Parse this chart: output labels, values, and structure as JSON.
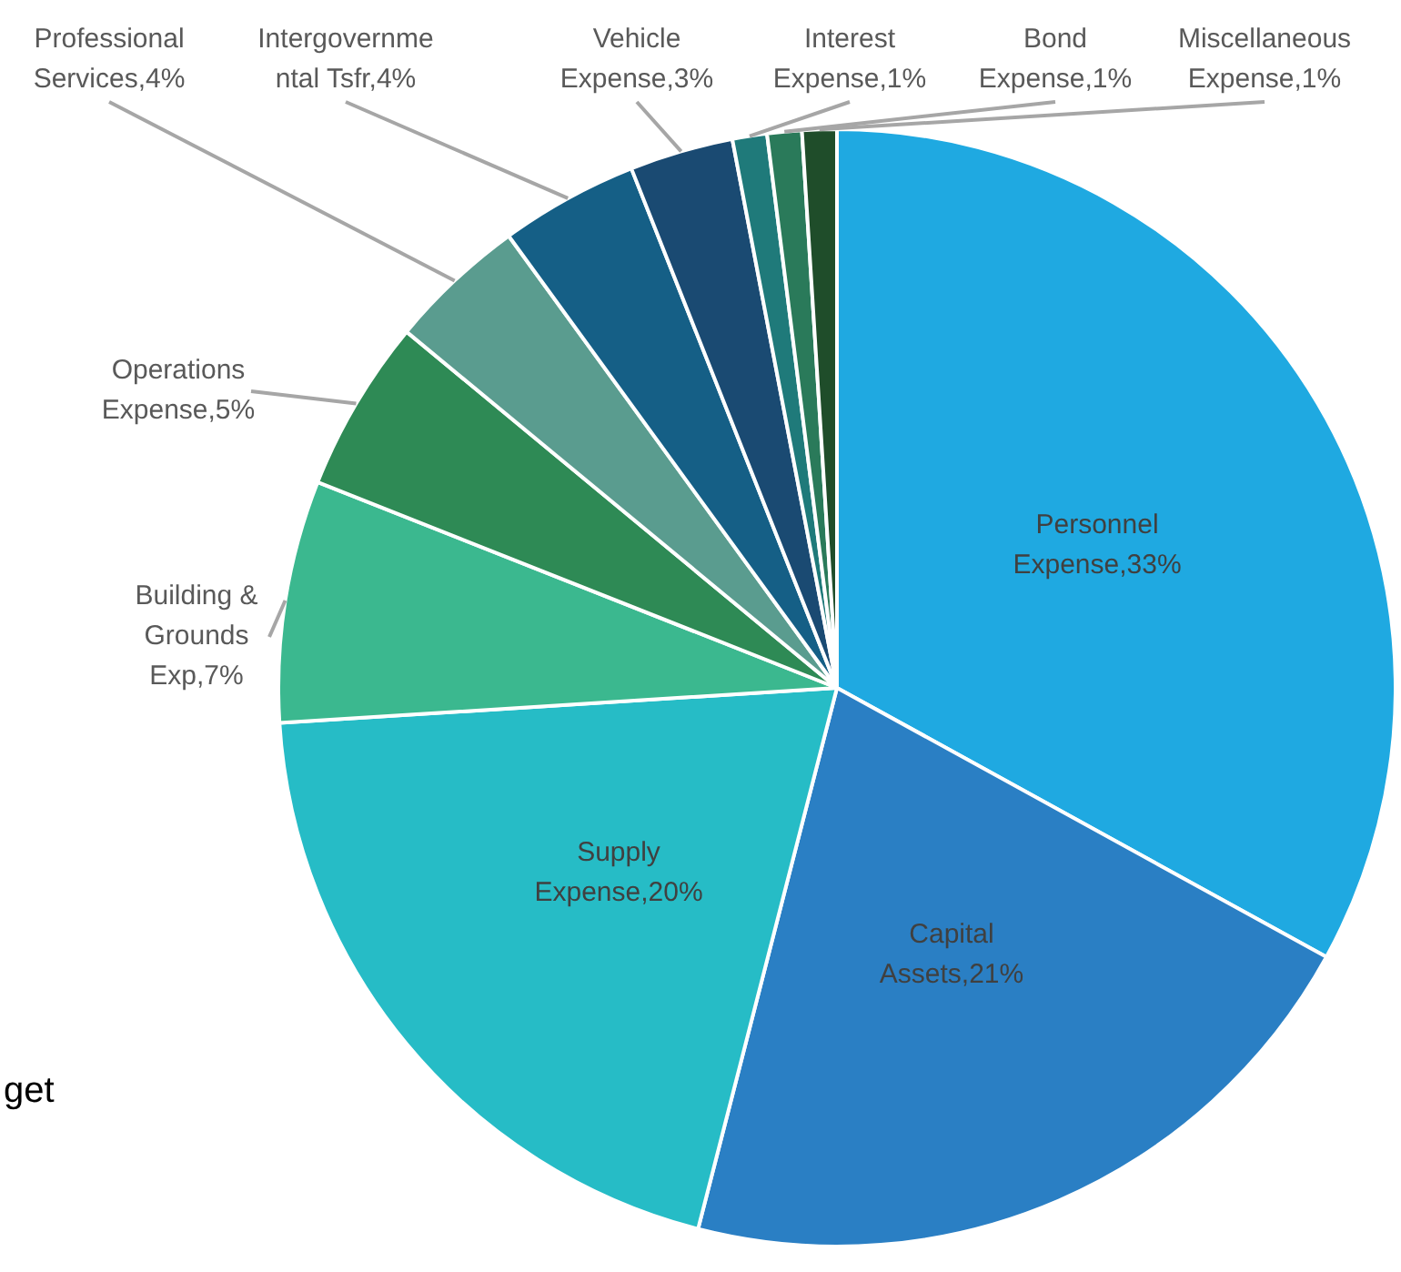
{
  "chart_data": {
    "type": "pie",
    "categories": [
      "Personnel Expense",
      "Capital Assets",
      "Supply Expense",
      "Building & Grounds Exp",
      "Operations Expense",
      "Professional Services",
      "Intergovernmental Tsfr",
      "Vehicle Expense",
      "Interest Expense",
      "Bond Expense",
      "Miscellaneous Expense"
    ],
    "values": [
      33,
      21,
      20,
      7,
      5,
      4,
      4,
      3,
      1,
      1,
      1
    ],
    "value_labels": [
      "33%",
      "21%",
      "20%",
      "7%",
      "5%",
      "4%",
      "4%",
      "3%",
      "1%",
      "1%",
      "1%"
    ],
    "colors": [
      "#1fa9e1",
      "#2a7fc4",
      "#26bcc6",
      "#3bb88f",
      "#2e8a55",
      "#5a9c8f",
      "#155f86",
      "#1a4a72",
      "#1f7a7a",
      "#2a7a5a",
      "#1f4d2a"
    ],
    "legend": false,
    "annotations": [
      "get"
    ]
  }
}
